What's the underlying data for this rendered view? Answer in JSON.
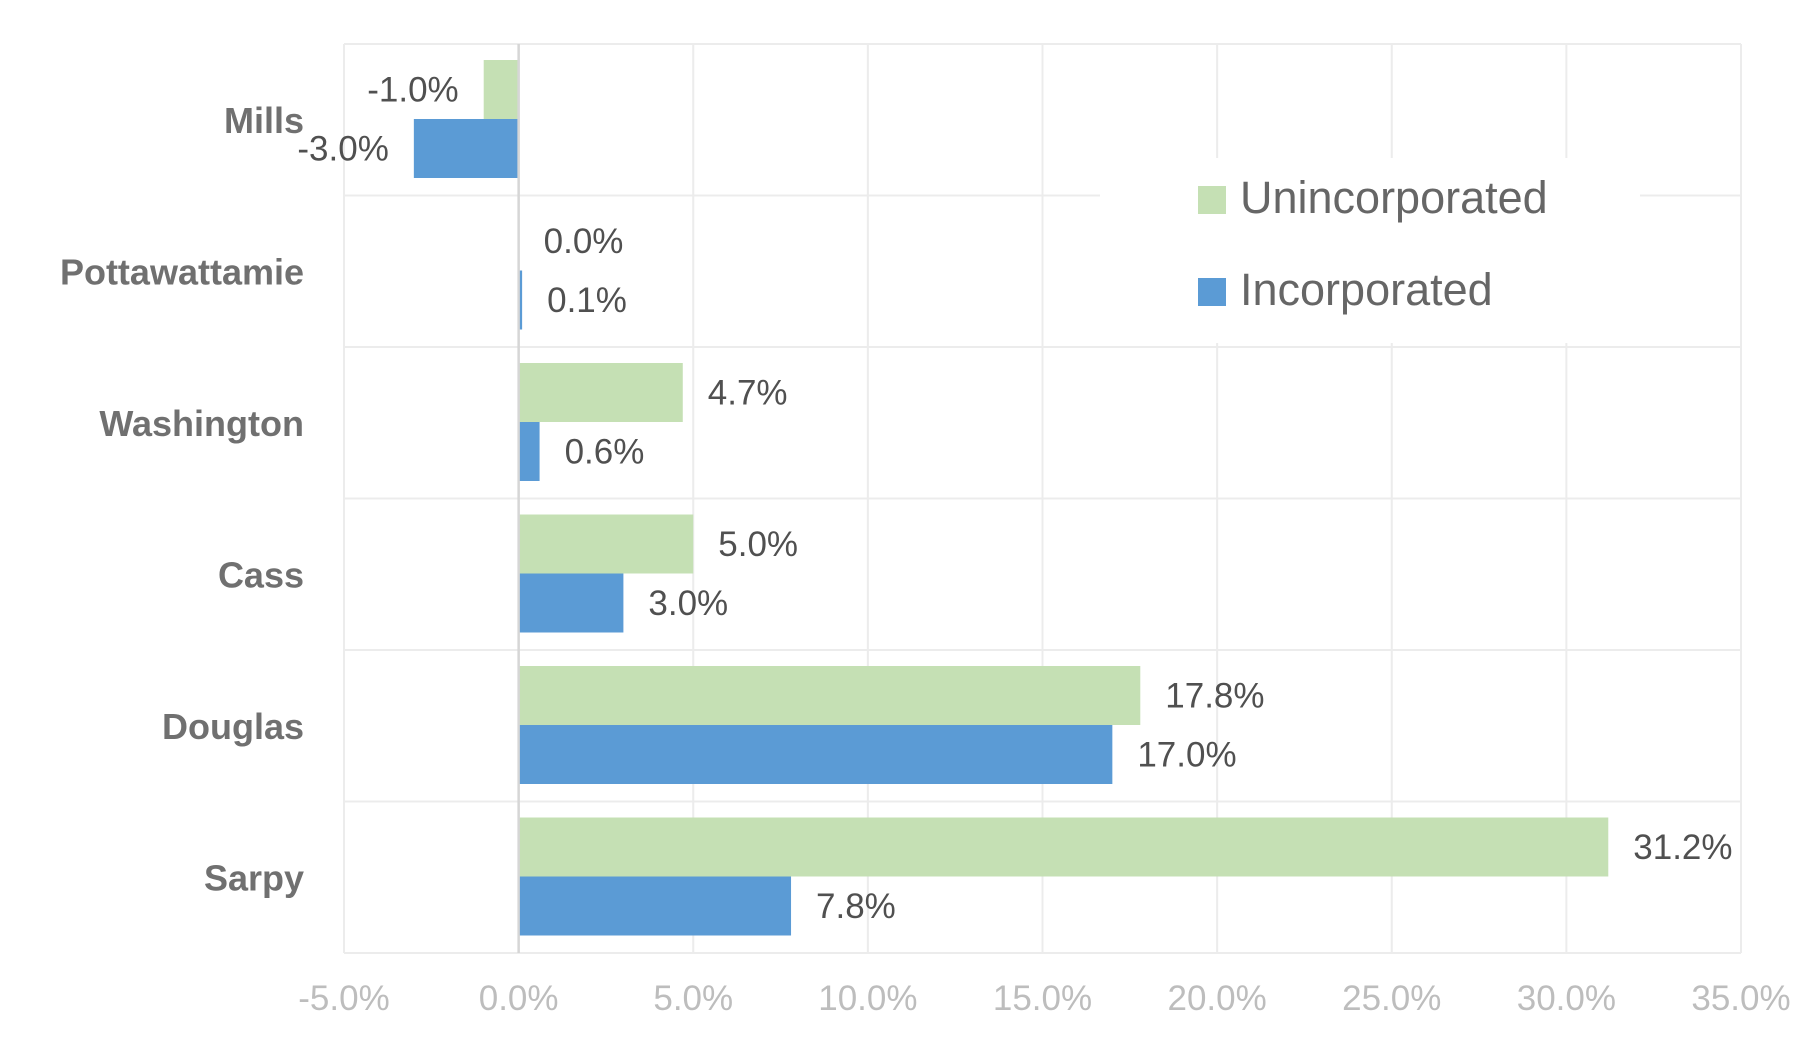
{
  "chart_data": {
    "type": "bar",
    "orientation": "horizontal",
    "categories": [
      "Mills",
      "Pottawattamie",
      "Washington",
      "Cass",
      "Douglas",
      "Sarpy"
    ],
    "series": [
      {
        "name": "Unincorporated",
        "color": "#c5e0b4",
        "values": [
          -1.0,
          0.0,
          4.7,
          5.0,
          17.8,
          31.2
        ],
        "labels": [
          "-1.0%",
          "0.0%",
          "4.7%",
          "5.0%",
          "17.8%",
          "31.2%"
        ]
      },
      {
        "name": "Incorporated",
        "color": "#5b9bd5",
        "values": [
          -3.0,
          0.1,
          0.6,
          3.0,
          17.0,
          7.8
        ],
        "labels": [
          "-3.0%",
          "0.1%",
          "0.6%",
          "3.0%",
          "17.0%",
          "7.8%"
        ]
      }
    ],
    "xlim": [
      -5.0,
      35.0
    ],
    "xticks": [
      -5.0,
      0.0,
      5.0,
      10.0,
      15.0,
      20.0,
      25.0,
      30.0,
      35.0
    ],
    "xtick_labels": [
      "-5.0%",
      "0.0%",
      "5.0%",
      "10.0%",
      "15.0%",
      "20.0%",
      "25.0%",
      "30.0%",
      "35.0%"
    ],
    "grid": true,
    "legend_position": "top-right",
    "title": "",
    "xlabel": "",
    "ylabel": ""
  }
}
